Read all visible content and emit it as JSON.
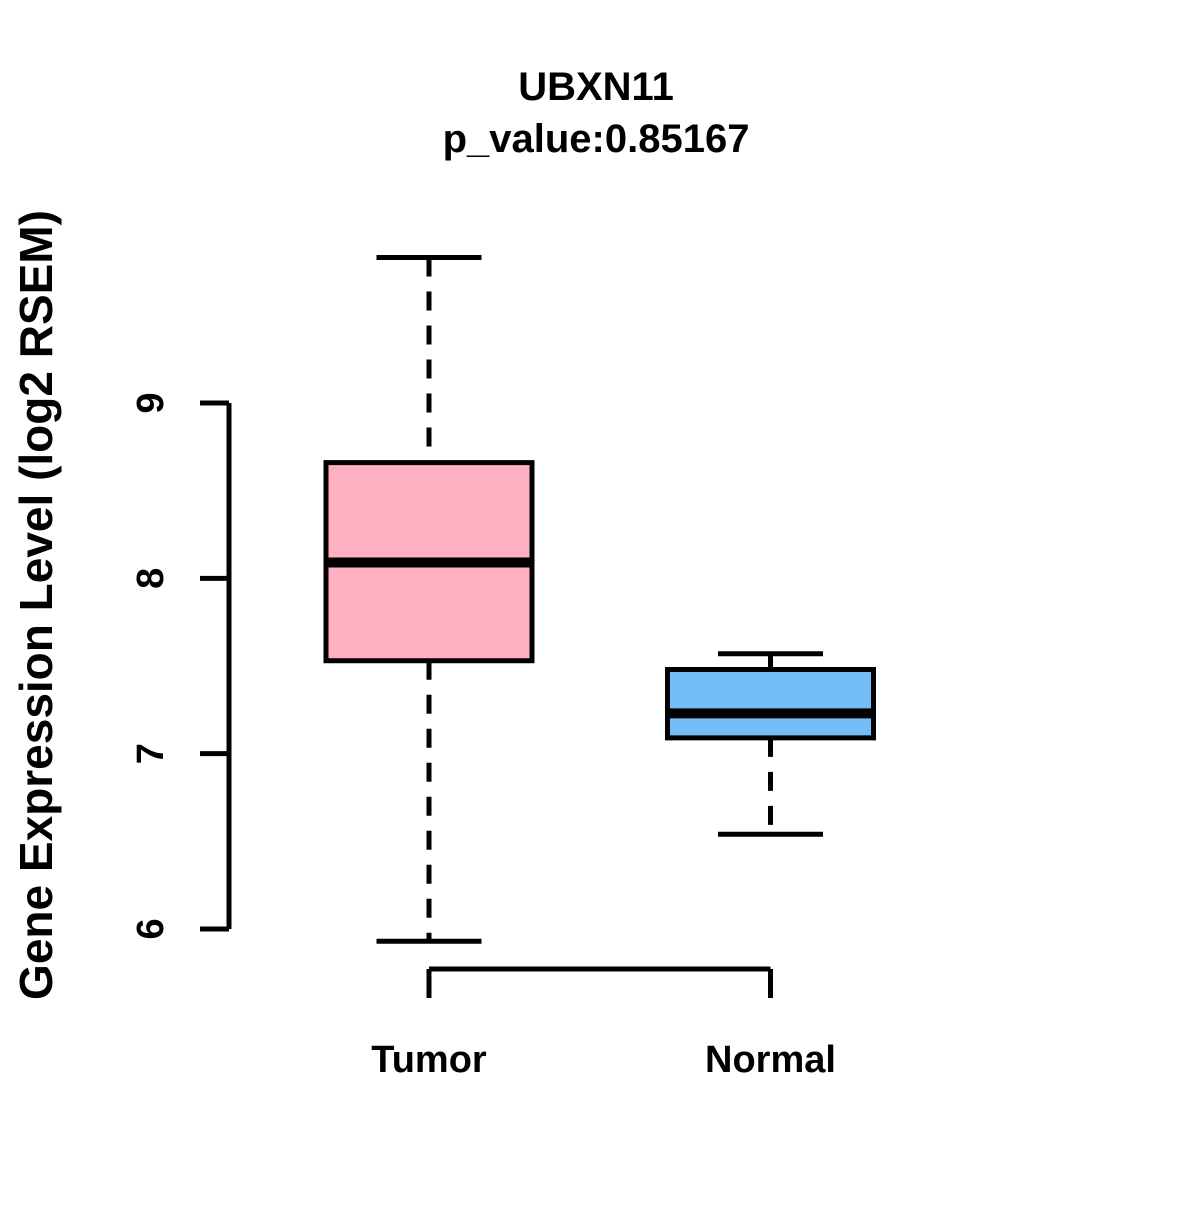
{
  "chart_data": {
    "type": "boxplot",
    "title": "UBXN11",
    "subtitle": "p_value:0.85167",
    "ylabel": "Gene Expression Level (log2 RSEM)",
    "xlabel": "",
    "categories": [
      "Tumor",
      "Normal"
    ],
    "yticks": [
      6,
      7,
      8,
      9
    ],
    "ylim": [
      5.55,
      9.95
    ],
    "grid": false,
    "legend": "none",
    "axis_color": "#000000",
    "series": [
      {
        "name": "Tumor",
        "fill_color": "#FFAFC2",
        "whisker_low": 5.93,
        "q1": 7.53,
        "median": 8.09,
        "q3": 8.66,
        "whisker_high": 9.83
      },
      {
        "name": "Normal",
        "fill_color": "#74BDF6",
        "whisker_low": 6.54,
        "q1": 7.09,
        "median": 7.23,
        "q3": 7.48,
        "whisker_high": 7.57
      }
    ]
  }
}
